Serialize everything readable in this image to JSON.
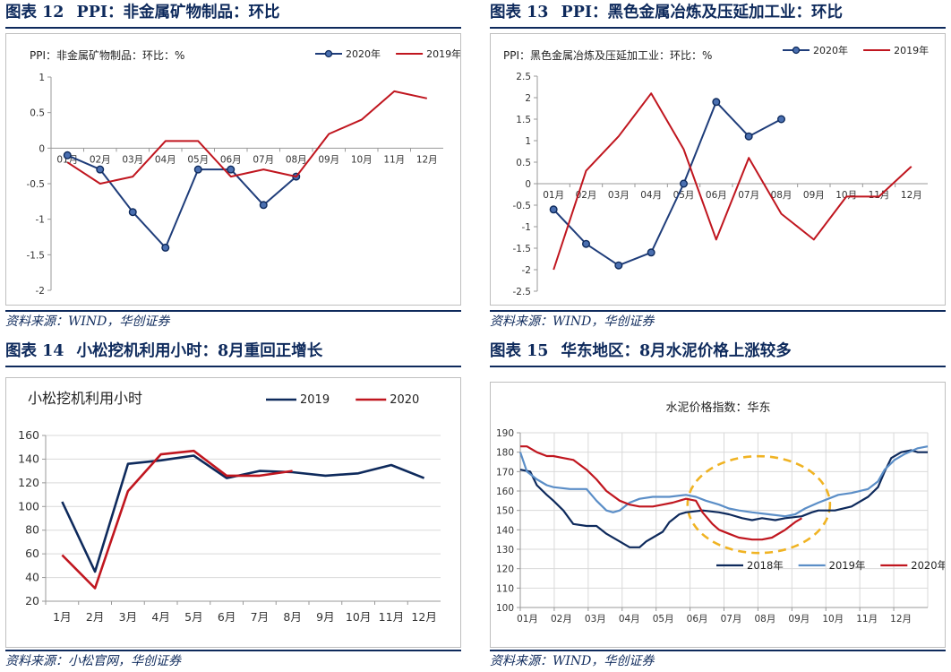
{
  "figures": [
    {
      "label": "图表 12",
      "heading": "PPI：非金属矿物制品：环比",
      "source": "资料来源：WIND，华创证券",
      "chart_data": {
        "type": "line",
        "title": "PPI：非金属矿物制品：环比：%",
        "categories": [
          "01月",
          "02月",
          "03月",
          "04月",
          "05月",
          "06月",
          "07月",
          "08月",
          "09月",
          "10月",
          "11月",
          "12月"
        ],
        "ylim": [
          -2,
          1
        ],
        "yticks": [
          -2,
          -1.5,
          -1,
          -0.5,
          0,
          0.5,
          1
        ],
        "legend_position": "top-right",
        "grid": false,
        "series": [
          {
            "name": "2020年",
            "color": "#1f3d7a",
            "markers": true,
            "values": [
              -0.1,
              -0.3,
              -0.9,
              -1.4,
              -0.3,
              -0.3,
              -0.8,
              -0.4,
              null,
              null,
              null,
              null
            ]
          },
          {
            "name": "2019年",
            "color": "#c0161f",
            "markers": false,
            "values": [
              -0.2,
              -0.5,
              -0.4,
              0.1,
              0.1,
              -0.4,
              -0.3,
              -0.4,
              0.2,
              0.4,
              0.8,
              0.7
            ]
          }
        ]
      }
    },
    {
      "label": "图表 13",
      "heading": "PPI：黑色金属冶炼及压延加工业：环比",
      "source": "资料来源：WIND，华创证券",
      "chart_data": {
        "type": "line",
        "title": "PPI：黑色金属冶炼及压延加工业：环比：%",
        "categories": [
          "01月",
          "02月",
          "03月",
          "04月",
          "05月",
          "06月",
          "07月",
          "08月",
          "09月",
          "10月",
          "11月",
          "12月"
        ],
        "ylim": [
          -2.5,
          2.5
        ],
        "yticks": [
          -2.5,
          -2,
          -1.5,
          -1,
          -0.5,
          0,
          0.5,
          1,
          1.5,
          2,
          2.5
        ],
        "legend_position": "top-right",
        "grid": false,
        "series": [
          {
            "name": "2020年",
            "color": "#1f3d7a",
            "markers": true,
            "values": [
              -0.6,
              -1.4,
              -1.9,
              -1.6,
              0.0,
              1.9,
              1.1,
              1.5,
              null,
              null,
              null,
              null
            ]
          },
          {
            "name": "2019年",
            "color": "#c0161f",
            "markers": false,
            "values": [
              -2.0,
              0.3,
              1.1,
              2.1,
              0.8,
              -1.3,
              0.6,
              -0.7,
              -1.3,
              -0.3,
              -0.3,
              0.4
            ]
          }
        ]
      }
    },
    {
      "label": "图表 14",
      "heading": "小松挖机利用小时：8月重回正增长",
      "source": "资料来源：小松官网，华创证券",
      "chart_data": {
        "type": "line",
        "title": "小松挖机利用小时",
        "categories": [
          "1月",
          "2月",
          "3月",
          "4月",
          "5月",
          "6月",
          "7月",
          "8月",
          "9月",
          "10月",
          "11月",
          "12月"
        ],
        "ylim": [
          20,
          160
        ],
        "yticks": [
          20,
          40,
          60,
          80,
          100,
          120,
          140,
          160
        ],
        "legend_position": "top-right",
        "grid": true,
        "series": [
          {
            "name": "2019",
            "color": "#0e2a5c",
            "markers": false,
            "values": [
              104,
              45,
              136,
              139,
              143,
              124,
              130,
              129,
              126,
              128,
              135,
              124
            ]
          },
          {
            "name": "2020",
            "color": "#c0161f",
            "markers": false,
            "values": [
              59,
              31,
              113,
              144,
              147,
              126,
              126,
              130,
              null,
              null,
              null,
              null
            ]
          }
        ]
      }
    },
    {
      "label": "图表 15",
      "heading": "华东地区：8月水泥价格上涨较多",
      "source": "资料来源：WIND，华创证券",
      "chart_data": {
        "type": "line",
        "title": "水泥价格指数：华东",
        "categories": [
          "01月",
          "02月",
          "03月",
          "04月",
          "05月",
          "06月",
          "07月",
          "08月",
          "09月",
          "10月",
          "11月",
          "12月"
        ],
        "x_start": 0.0,
        "x_end": 12.3,
        "ylim": [
          100,
          190
        ],
        "yticks": [
          100,
          110,
          120,
          130,
          140,
          150,
          160,
          170,
          180,
          190
        ],
        "legend_position": "bottom-right",
        "grid": true,
        "annotation": "dashed orange ellipse highlighting May–Sep",
        "series": [
          {
            "name": "2018年",
            "color": "#0e2a5c",
            "points": [
              [
                0,
                171
              ],
              [
                0.3,
                170
              ],
              [
                0.5,
                163
              ],
              [
                0.8,
                158
              ],
              [
                1.0,
                155
              ],
              [
                1.3,
                150
              ],
              [
                1.6,
                143
              ],
              [
                2.0,
                142
              ],
              [
                2.3,
                142
              ],
              [
                2.6,
                138
              ],
              [
                3.0,
                134
              ],
              [
                3.3,
                131
              ],
              [
                3.6,
                131
              ],
              [
                3.8,
                134
              ],
              [
                4.0,
                136
              ],
              [
                4.3,
                139
              ],
              [
                4.5,
                144
              ],
              [
                4.8,
                148
              ],
              [
                5.0,
                149
              ],
              [
                5.5,
                150
              ],
              [
                6.0,
                149
              ],
              [
                6.3,
                148
              ],
              [
                6.7,
                146
              ],
              [
                7.0,
                145
              ],
              [
                7.3,
                146
              ],
              [
                7.7,
                145
              ],
              [
                8.0,
                146
              ],
              [
                8.5,
                147
              ],
              [
                8.8,
                149
              ],
              [
                9.0,
                150
              ],
              [
                9.5,
                150
              ],
              [
                10.0,
                152
              ],
              [
                10.5,
                157
              ],
              [
                10.8,
                162
              ],
              [
                11.0,
                170
              ],
              [
                11.2,
                177
              ],
              [
                11.5,
                180
              ],
              [
                11.8,
                181
              ],
              [
                12.0,
                180
              ],
              [
                12.3,
                180
              ]
            ]
          },
          {
            "name": "2019年",
            "color": "#5b8ec7",
            "points": [
              [
                0,
                180
              ],
              [
                0.2,
                170
              ],
              [
                0.5,
                166
              ],
              [
                0.8,
                163
              ],
              [
                1.0,
                162
              ],
              [
                1.5,
                161
              ],
              [
                2.0,
                161
              ],
              [
                2.3,
                155
              ],
              [
                2.6,
                150
              ],
              [
                2.8,
                149
              ],
              [
                3.0,
                150
              ],
              [
                3.3,
                154
              ],
              [
                3.6,
                156
              ],
              [
                4.0,
                157
              ],
              [
                4.5,
                157
              ],
              [
                5.0,
                158
              ],
              [
                5.3,
                157
              ],
              [
                5.6,
                155
              ],
              [
                6.0,
                153
              ],
              [
                6.3,
                151
              ],
              [
                6.6,
                150
              ],
              [
                7.0,
                149
              ],
              [
                7.5,
                148
              ],
              [
                8.0,
                147
              ],
              [
                8.3,
                148
              ],
              [
                8.6,
                151
              ],
              [
                9.0,
                154
              ],
              [
                9.3,
                156
              ],
              [
                9.6,
                158
              ],
              [
                10.0,
                159
              ],
              [
                10.5,
                161
              ],
              [
                10.8,
                165
              ],
              [
                11.0,
                171
              ],
              [
                11.3,
                176
              ],
              [
                11.6,
                179
              ],
              [
                12.0,
                182
              ],
              [
                12.3,
                183
              ]
            ]
          },
          {
            "name": "2020年",
            "color": "#c0161f",
            "points": [
              [
                0,
                183
              ],
              [
                0.2,
                183
              ],
              [
                0.5,
                180
              ],
              [
                0.8,
                178
              ],
              [
                1.0,
                178
              ],
              [
                1.3,
                177
              ],
              [
                1.6,
                176
              ],
              [
                2.0,
                171
              ],
              [
                2.3,
                166
              ],
              [
                2.6,
                160
              ],
              [
                3.0,
                155
              ],
              [
                3.3,
                153
              ],
              [
                3.6,
                152
              ],
              [
                4.0,
                152
              ],
              [
                4.3,
                153
              ],
              [
                4.6,
                154
              ],
              [
                5.0,
                156
              ],
              [
                5.3,
                155
              ],
              [
                5.5,
                149
              ],
              [
                5.8,
                143
              ],
              [
                6.0,
                140
              ],
              [
                6.3,
                138
              ],
              [
                6.6,
                136
              ],
              [
                7.0,
                135
              ],
              [
                7.3,
                135
              ],
              [
                7.6,
                136
              ],
              [
                8.0,
                140
              ],
              [
                8.3,
                144
              ],
              [
                8.5,
                146
              ]
            ]
          }
        ]
      }
    }
  ]
}
